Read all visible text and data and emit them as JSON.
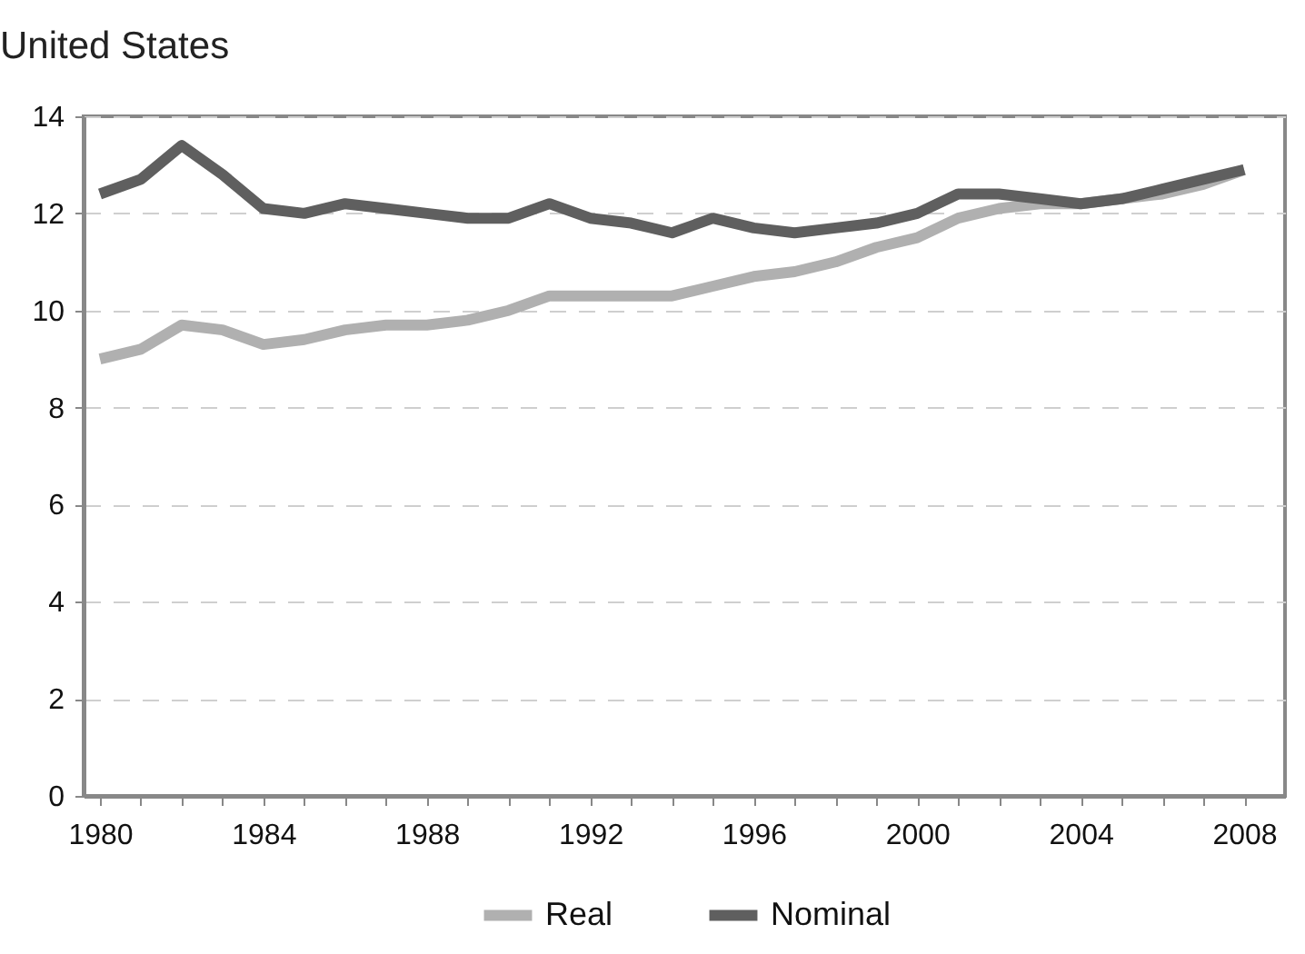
{
  "chart_data": {
    "type": "line",
    "title": "United States",
    "x": [
      1980,
      1981,
      1982,
      1983,
      1984,
      1985,
      1986,
      1987,
      1988,
      1989,
      1990,
      1991,
      1992,
      1993,
      1994,
      1995,
      1996,
      1997,
      1998,
      1999,
      2000,
      2001,
      2002,
      2003,
      2004,
      2005,
      2006,
      2007,
      2008
    ],
    "series": [
      {
        "name": "Real",
        "color": "#b0b0b0",
        "values": [
          9.0,
          9.2,
          9.7,
          9.6,
          9.3,
          9.4,
          9.6,
          9.7,
          9.7,
          9.8,
          10.0,
          10.3,
          10.3,
          10.3,
          10.3,
          10.5,
          10.7,
          10.8,
          11.0,
          11.3,
          11.5,
          11.9,
          12.1,
          12.2,
          12.2,
          12.3,
          12.4,
          12.6,
          12.9
        ]
      },
      {
        "name": "Nominal",
        "color": "#5f5f5f",
        "values": [
          12.4,
          12.7,
          13.4,
          12.8,
          12.1,
          12.0,
          12.2,
          12.1,
          12.0,
          11.9,
          11.9,
          12.2,
          11.9,
          11.8,
          11.6,
          11.9,
          11.7,
          11.6,
          11.7,
          11.8,
          12.0,
          12.4,
          12.4,
          12.3,
          12.2,
          12.3,
          12.5,
          12.7,
          12.9
        ]
      }
    ],
    "xlim": [
      1979.6,
      2009
    ],
    "xticks": [
      1980,
      {
        "value": 1981,
        "label": null
      },
      {
        "value": 1982,
        "label": null
      },
      {
        "value": 1983,
        "label": null
      },
      1984,
      {
        "value": 1985,
        "label": null
      },
      {
        "value": 1986,
        "label": null
      },
      {
        "value": 1987,
        "label": null
      },
      1988,
      {
        "value": 1989,
        "label": null
      },
      {
        "value": 1990,
        "label": null
      },
      {
        "value": 1991,
        "label": null
      },
      1992,
      {
        "value": 1993,
        "label": null
      },
      {
        "value": 1994,
        "label": null
      },
      {
        "value": 1995,
        "label": null
      },
      1996,
      {
        "value": 1997,
        "label": null
      },
      {
        "value": 1998,
        "label": null
      },
      {
        "value": 1999,
        "label": null
      },
      2000,
      {
        "value": 2001,
        "label": null
      },
      {
        "value": 2002,
        "label": null
      },
      {
        "value": 2003,
        "label": null
      },
      2004,
      {
        "value": 2005,
        "label": null
      },
      {
        "value": 2006,
        "label": null
      },
      {
        "value": 2007,
        "label": null
      },
      2008
    ],
    "ylim": [
      0,
      14
    ],
    "yticks": [
      0,
      2,
      4,
      6,
      8,
      10,
      12,
      14
    ],
    "grid": "y",
    "legend": "bottom",
    "line_style": "solid",
    "marker": "none"
  }
}
